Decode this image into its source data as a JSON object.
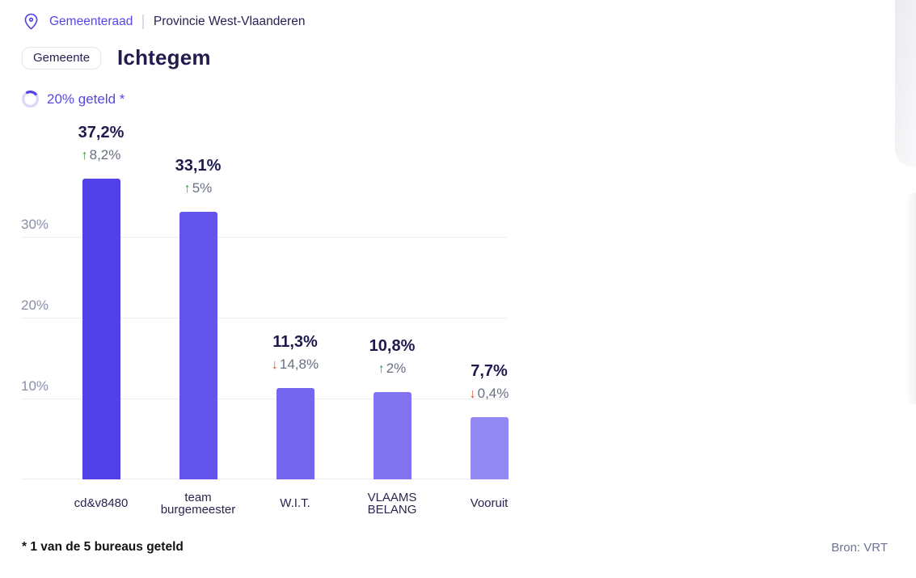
{
  "header": {
    "election": "Gemeenteraad",
    "region": "Provincie West-Vlaanderen"
  },
  "page": {
    "entity_type_badge": "Gemeente",
    "title": "Ichtegem"
  },
  "progress": {
    "percent_counted": 20,
    "label": "20% geteld *"
  },
  "chart_data": {
    "type": "bar",
    "title": "",
    "categories": [
      "cd&v8480",
      "team burgemeester",
      "W.I.T.",
      "VLAAMS BELANG",
      "Vooruit"
    ],
    "values": [
      37.2,
      33.1,
      11.3,
      10.8,
      7.7
    ],
    "value_labels": [
      "37,2%",
      "33,1%",
      "11,3%",
      "10,8%",
      "7,7%"
    ],
    "changes": [
      {
        "direction": "up",
        "label": "8,2%"
      },
      {
        "direction": "up",
        "label": "5%"
      },
      {
        "direction": "down",
        "label": "14,8%"
      },
      {
        "direction": "up",
        "label": "2%"
      },
      {
        "direction": "down",
        "label": "0,4%"
      }
    ],
    "yticks": [
      10,
      20,
      30
    ],
    "ytick_labels": [
      "10%",
      "20%",
      "30%"
    ],
    "ylim": [
      0,
      44.3
    ],
    "grid": true,
    "legend": false,
    "bar_colors": [
      "#5241e9",
      "#6354ed",
      "#7565ef",
      "#8274f1",
      "#9488f3"
    ]
  },
  "icons": {
    "up_arrow": "↑",
    "down_arrow": "↓"
  },
  "footer": {
    "note": "* 1 van de 5 bureaus geteld",
    "source": "Bron: VRT"
  },
  "colors": {
    "accent": "#5746e5",
    "ring_track": "#dcd7f7",
    "title": "#211c4e",
    "up": "#2f9e3f",
    "down": "#e2492f",
    "axis_text": "#8a8fa8",
    "gridline": "#ededf1"
  }
}
